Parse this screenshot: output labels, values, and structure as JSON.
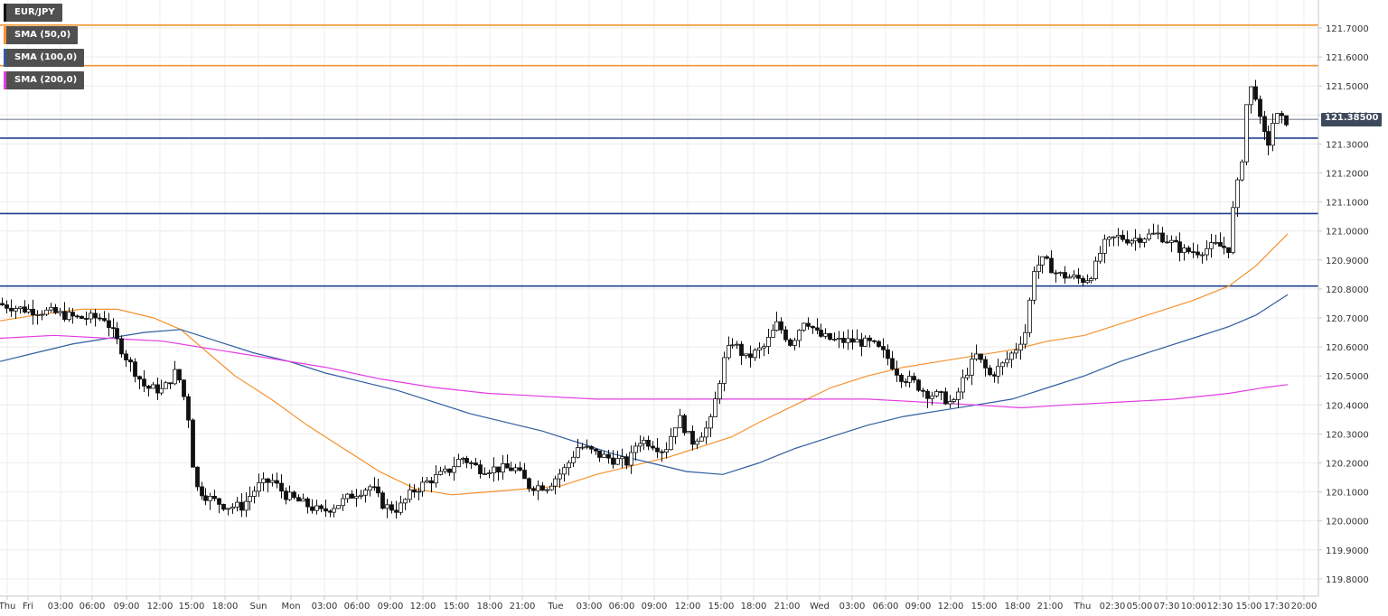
{
  "chart_data": {
    "type": "candlestick",
    "title": "EUR/JPY",
    "legend": [
      {
        "label": "EUR/JPY",
        "color": "#111111"
      },
      {
        "label": "SMA (50,0)",
        "color": "#f5922f"
      },
      {
        "label": "SMA (100,0)",
        "color": "#2f5d9f"
      },
      {
        "label": "SMA (200,0)",
        "color": "#e43ce4"
      }
    ],
    "current_price": "121.38500",
    "current_price_value": 121.385,
    "ylim": [
      119.74,
      121.77
    ],
    "y_ticks": [
      "121.7000",
      "121.6000",
      "121.5000",
      "121.4000",
      "121.3000",
      "121.2000",
      "121.1000",
      "121.0000",
      "120.9000",
      "120.8000",
      "120.7000",
      "120.6000",
      "120.5000",
      "120.4000",
      "120.3000",
      "120.2000",
      "120.1000",
      "120.0000",
      "119.9000",
      "119.8000"
    ],
    "x_ticks": [
      "Thu",
      "Fri",
      "03:00",
      "06:00",
      "09:00",
      "12:00",
      "15:00",
      "18:00",
      "Sun",
      "Mon",
      "03:00",
      "06:00",
      "09:00",
      "12:00",
      "15:00",
      "18:00",
      "21:00",
      "Tue",
      "03:00",
      "06:00",
      "09:00",
      "12:00",
      "15:00",
      "18:00",
      "21:00",
      "Wed",
      "03:00",
      "06:00",
      "09:00",
      "12:00",
      "15:00",
      "18:00",
      "21:00",
      "Thu",
      "02:30",
      "05:00",
      "07:30",
      "10:00",
      "12:30",
      "15:00",
      "17:30",
      "20:00"
    ],
    "horizontal_levels": [
      {
        "value": 121.71,
        "color": "#f5922f"
      },
      {
        "value": 121.57,
        "color": "#f5922f"
      },
      {
        "value": 121.32,
        "color": "#1f3f8f"
      },
      {
        "value": 121.06,
        "color": "#1f3f8f"
      },
      {
        "value": 120.81,
        "color": "#1f3f8f"
      }
    ],
    "sma_series": [
      {
        "name": "SMA (50,0)",
        "color": "#f5922f",
        "points": [
          [
            0,
            120.69
          ],
          [
            40,
            120.71
          ],
          [
            90,
            120.73
          ],
          [
            130,
            120.73
          ],
          [
            170,
            120.7
          ],
          [
            200,
            120.66
          ],
          [
            230,
            120.58
          ],
          [
            260,
            120.5
          ],
          [
            300,
            120.42
          ],
          [
            340,
            120.33
          ],
          [
            380,
            120.25
          ],
          [
            420,
            120.17
          ],
          [
            460,
            120.11
          ],
          [
            500,
            120.09
          ],
          [
            540,
            120.1
          ],
          [
            580,
            120.11
          ],
          [
            620,
            120.12
          ],
          [
            660,
            120.16
          ],
          [
            700,
            120.19
          ],
          [
            740,
            120.22
          ],
          [
            780,
            120.26
          ],
          [
            810,
            120.29
          ],
          [
            840,
            120.34
          ],
          [
            880,
            120.4
          ],
          [
            920,
            120.46
          ],
          [
            960,
            120.5
          ],
          [
            1000,
            120.53
          ],
          [
            1040,
            120.55
          ],
          [
            1080,
            120.57
          ],
          [
            1120,
            120.59
          ],
          [
            1160,
            120.62
          ],
          [
            1200,
            120.64
          ],
          [
            1240,
            120.68
          ],
          [
            1280,
            120.72
          ],
          [
            1320,
            120.76
          ],
          [
            1360,
            120.81
          ],
          [
            1390,
            120.88
          ],
          [
            1425,
            120.99
          ]
        ]
      },
      {
        "name": "SMA (100,0)",
        "color": "#2f5d9f",
        "points": [
          [
            0,
            120.55
          ],
          [
            40,
            120.58
          ],
          [
            80,
            120.61
          ],
          [
            120,
            120.63
          ],
          [
            160,
            120.65
          ],
          [
            200,
            120.66
          ],
          [
            240,
            120.62
          ],
          [
            280,
            120.58
          ],
          [
            320,
            120.55
          ],
          [
            360,
            120.51
          ],
          [
            400,
            120.48
          ],
          [
            440,
            120.45
          ],
          [
            480,
            120.41
          ],
          [
            520,
            120.37
          ],
          [
            560,
            120.34
          ],
          [
            600,
            120.31
          ],
          [
            640,
            120.27
          ],
          [
            680,
            120.23
          ],
          [
            720,
            120.2
          ],
          [
            760,
            120.17
          ],
          [
            800,
            120.16
          ],
          [
            840,
            120.2
          ],
          [
            880,
            120.25
          ],
          [
            920,
            120.29
          ],
          [
            960,
            120.33
          ],
          [
            1000,
            120.36
          ],
          [
            1040,
            120.38
          ],
          [
            1080,
            120.4
          ],
          [
            1120,
            120.42
          ],
          [
            1160,
            120.46
          ],
          [
            1200,
            120.5
          ],
          [
            1240,
            120.55
          ],
          [
            1280,
            120.59
          ],
          [
            1320,
            120.63
          ],
          [
            1360,
            120.67
          ],
          [
            1390,
            120.71
          ],
          [
            1425,
            120.78
          ]
        ]
      },
      {
        "name": "SMA (200,0)",
        "color": "#e43ce4",
        "points": [
          [
            0,
            120.63
          ],
          [
            60,
            120.64
          ],
          [
            120,
            120.63
          ],
          [
            180,
            120.62
          ],
          [
            240,
            120.59
          ],
          [
            300,
            120.56
          ],
          [
            360,
            120.53
          ],
          [
            420,
            120.49
          ],
          [
            480,
            120.46
          ],
          [
            540,
            120.44
          ],
          [
            600,
            120.43
          ],
          [
            660,
            120.42
          ],
          [
            720,
            120.42
          ],
          [
            780,
            120.42
          ],
          [
            840,
            120.42
          ],
          [
            900,
            120.42
          ],
          [
            960,
            120.42
          ],
          [
            1020,
            120.41
          ],
          [
            1080,
            120.4
          ],
          [
            1130,
            120.39
          ],
          [
            1180,
            120.4
          ],
          [
            1240,
            120.41
          ],
          [
            1300,
            120.42
          ],
          [
            1360,
            120.44
          ],
          [
            1400,
            120.46
          ],
          [
            1425,
            120.47
          ]
        ]
      }
    ],
    "candle_anchors": [
      [
        0,
        120.75
      ],
      [
        30,
        120.73
      ],
      [
        60,
        120.72
      ],
      [
        90,
        120.7
      ],
      [
        120,
        120.7
      ],
      [
        145,
        120.56
      ],
      [
        165,
        120.46
      ],
      [
        185,
        120.45
      ],
      [
        200,
        120.52
      ],
      [
        212,
        120.38
      ],
      [
        220,
        120.12
      ],
      [
        235,
        120.08
      ],
      [
        255,
        120.05
      ],
      [
        272,
        120.05
      ],
      [
        290,
        120.12
      ],
      [
        305,
        120.14
      ],
      [
        320,
        120.09
      ],
      [
        340,
        120.06
      ],
      [
        360,
        120.03
      ],
      [
        380,
        120.06
      ],
      [
        400,
        120.1
      ],
      [
        415,
        120.12
      ],
      [
        430,
        120.05
      ],
      [
        445,
        120.04
      ],
      [
        460,
        120.1
      ],
      [
        480,
        120.14
      ],
      [
        500,
        120.17
      ],
      [
        515,
        120.22
      ],
      [
        535,
        120.18
      ],
      [
        555,
        120.18
      ],
      [
        575,
        120.18
      ],
      [
        590,
        120.12
      ],
      [
        610,
        120.12
      ],
      [
        630,
        120.18
      ],
      [
        645,
        120.26
      ],
      [
        665,
        120.23
      ],
      [
        685,
        120.21
      ],
      [
        700,
        120.2
      ],
      [
        710,
        120.28
      ],
      [
        725,
        120.27
      ],
      [
        740,
        120.24
      ],
      [
        755,
        120.36
      ],
      [
        770,
        120.27
      ],
      [
        790,
        120.33
      ],
      [
        805,
        120.55
      ],
      [
        815,
        120.62
      ],
      [
        830,
        120.56
      ],
      [
        850,
        120.6
      ],
      [
        865,
        120.68
      ],
      [
        880,
        120.61
      ],
      [
        895,
        120.7
      ],
      [
        910,
        120.64
      ],
      [
        930,
        120.62
      ],
      [
        950,
        120.62
      ],
      [
        970,
        120.61
      ],
      [
        985,
        120.57
      ],
      [
        1000,
        120.5
      ],
      [
        1015,
        120.48
      ],
      [
        1030,
        120.44
      ],
      [
        1045,
        120.43
      ],
      [
        1060,
        120.4
      ],
      [
        1072,
        120.5
      ],
      [
        1085,
        120.57
      ],
      [
        1100,
        120.5
      ],
      [
        1115,
        120.54
      ],
      [
        1130,
        120.6
      ],
      [
        1140,
        120.66
      ],
      [
        1148,
        120.87
      ],
      [
        1160,
        120.9
      ],
      [
        1175,
        120.85
      ],
      [
        1190,
        120.84
      ],
      [
        1205,
        120.83
      ],
      [
        1215,
        120.86
      ],
      [
        1225,
        120.95
      ],
      [
        1240,
        120.98
      ],
      [
        1255,
        120.97
      ],
      [
        1270,
        120.98
      ],
      [
        1285,
        120.99
      ],
      [
        1300,
        120.96
      ],
      [
        1315,
        120.93
      ],
      [
        1330,
        120.93
      ],
      [
        1350,
        120.95
      ],
      [
        1365,
        120.94
      ],
      [
        1370,
        121.1
      ],
      [
        1378,
        121.22
      ],
      [
        1385,
        121.48
      ],
      [
        1392,
        121.5
      ],
      [
        1400,
        121.35
      ],
      [
        1408,
        121.3
      ],
      [
        1415,
        121.4
      ],
      [
        1424,
        121.38
      ]
    ]
  }
}
